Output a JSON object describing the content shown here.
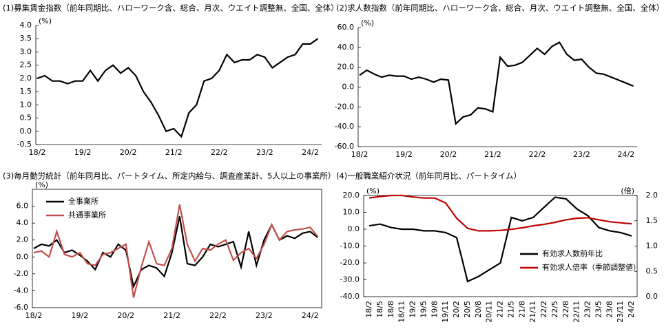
{
  "chart_data": [
    {
      "type": "line",
      "title": "(1)募集賃金指数（前年同期比、ハローワーク含、総合、月次、ウエイト調整無、全国、全体）",
      "y_unit": "(%)",
      "grid": false,
      "frame": "axes",
      "categories": [
        "18/2",
        null,
        null,
        null,
        null,
        null,
        "19/2",
        null,
        null,
        null,
        null,
        null,
        "20/2",
        null,
        null,
        null,
        null,
        null,
        "21/2",
        null,
        null,
        null,
        null,
        null,
        "22/2",
        null,
        null,
        null,
        null,
        null,
        "23/2",
        null,
        null,
        null,
        null,
        null,
        "24/2",
        null
      ],
      "series": [
        {
          "color": "#000000",
          "values": [
            2.0,
            2.1,
            1.9,
            1.9,
            1.8,
            1.9,
            1.9,
            2.3,
            1.9,
            2.3,
            2.5,
            2.2,
            2.4,
            2.1,
            1.5,
            1.1,
            0.6,
            0.0,
            0.1,
            -0.2,
            0.7,
            1.0,
            1.9,
            2.0,
            2.3,
            2.9,
            2.6,
            2.7,
            2.7,
            2.9,
            2.8,
            2.4,
            2.6,
            2.8,
            2.9,
            3.3,
            3.3,
            3.5
          ]
        }
      ],
      "ylim": [
        -0.5,
        4.0
      ],
      "yticks": [
        {
          "value": -0.5,
          "label": "-0.5"
        },
        {
          "value": 0,
          "label": "0.0"
        },
        {
          "value": 0.5,
          "label": "0.5"
        },
        {
          "value": 1,
          "label": "1.0"
        },
        {
          "value": 1.5,
          "label": "1.5"
        },
        {
          "value": 2,
          "label": "2.0"
        },
        {
          "value": 2.5,
          "label": "2.5"
        },
        {
          "value": 3,
          "label": "3.0"
        },
        {
          "value": 3.5,
          "label": "3.5"
        },
        {
          "value": 4,
          "label": "4.0"
        }
      ]
    },
    {
      "type": "line",
      "title": "(2)求人数指数（前年同期比、ハローワーク含、総合、月次、ウエイト調整無、全国、全体）",
      "y_unit": "(%)",
      "grid": false,
      "frame": "axes",
      "categories": [
        "18/2",
        null,
        null,
        null,
        null,
        null,
        "19/2",
        null,
        null,
        null,
        null,
        null,
        "20/2",
        null,
        null,
        null,
        null,
        null,
        "21/2",
        null,
        null,
        null,
        null,
        null,
        "22/2",
        null,
        null,
        null,
        null,
        null,
        "23/2",
        null,
        null,
        null,
        null,
        null,
        "24/2",
        null
      ],
      "series": [
        {
          "color": "#000000",
          "values": [
            12,
            17,
            13,
            10,
            12,
            11,
            11,
            8,
            10,
            8,
            5,
            8,
            7,
            -37,
            -30,
            -28,
            -21,
            -22,
            -25,
            30,
            21,
            22,
            25,
            32,
            39,
            33,
            41,
            45,
            33,
            27,
            28,
            20,
            14,
            13,
            10,
            7,
            4,
            1
          ]
        }
      ],
      "ylim": [
        -60,
        60
      ],
      "yticks": [
        {
          "value": -60,
          "label": "-60.0"
        },
        {
          "value": -40,
          "label": "-40.0"
        },
        {
          "value": -20,
          "label": "-20.0"
        },
        {
          "value": 0,
          "label": "0.0"
        },
        {
          "value": 20,
          "label": "20.0"
        },
        {
          "value": 40,
          "label": "40.0"
        },
        {
          "value": 60,
          "label": "60.0"
        }
      ]
    },
    {
      "type": "line",
      "title": "(3)毎月勤労統計（前年同月比、パートタイム、所定内給与、調査産業計、5人以上の事業所）",
      "y_unit": "(%)",
      "grid": false,
      "frame": "box",
      "legend": "upper left",
      "categories": [
        "18/2",
        null,
        null,
        null,
        null,
        null,
        "19/2",
        null,
        null,
        null,
        null,
        null,
        "20/2",
        null,
        null,
        null,
        null,
        null,
        "21/2",
        null,
        null,
        null,
        null,
        null,
        "22/2",
        null,
        null,
        null,
        null,
        null,
        "23/2",
        null,
        null,
        null,
        null,
        null,
        "24/2",
        null
      ],
      "series": [
        {
          "name": "全事業所",
          "color": "#000000",
          "values": [
            1.0,
            1.5,
            1.3,
            2.0,
            0.5,
            0.8,
            0.2,
            -0.5,
            -1.5,
            0.5,
            0.0,
            1.5,
            0.8,
            -3.5,
            -1.5,
            -1.0,
            -1.3,
            -2.3,
            0.5,
            4.8,
            -0.8,
            -1.0,
            0.0,
            1.5,
            1.2,
            1.5,
            1.8,
            -1.2,
            3.0,
            -1.0,
            2.0,
            3.8,
            2.0,
            2.5,
            2.2,
            2.8,
            3.0,
            2.3
          ]
        },
        {
          "name": "共通事業所",
          "color": "#c0504d",
          "values": [
            0.5,
            0.7,
            0.0,
            3.0,
            0.3,
            0.0,
            0.5,
            -0.8,
            -1.0,
            0.3,
            0.5,
            1.0,
            1.5,
            -4.8,
            -1.2,
            1.8,
            -0.8,
            -1.0,
            1.0,
            6.2,
            1.5,
            -0.5,
            1.0,
            0.8,
            1.5,
            2.0,
            -0.4,
            0.5,
            1.0,
            -0.2,
            1.5,
            3.8,
            2.0,
            3.0,
            3.2,
            3.3,
            3.5,
            2.4
          ]
        }
      ],
      "ylim": [
        -6,
        8
      ],
      "yticks": [
        {
          "value": -6,
          "label": "-6.0"
        },
        {
          "value": -4,
          "label": "-4.0"
        },
        {
          "value": -2,
          "label": "-2.0"
        },
        {
          "value": 0,
          "label": "0.0"
        },
        {
          "value": 2,
          "label": "2.0"
        },
        {
          "value": 4,
          "label": "4.0"
        },
        {
          "value": 6,
          "label": "6.0"
        }
      ]
    },
    {
      "type": "line",
      "title": "(4)一般職業紹介状況（前年同月比、パートタイム）",
      "y_unit": "(%)",
      "y2_unit": "(倍)",
      "grid": false,
      "frame": "box",
      "legend": "lower right",
      "rotate_x_labels": true,
      "categories": [
        "18/2",
        "18/5",
        "18/8",
        "18/11",
        "19/2",
        "19/5",
        "19/8",
        "19/11",
        "20/2",
        "20/5",
        "20/8",
        "20/11",
        "21/2",
        "21/5",
        "21/8",
        "21/11",
        "22/2",
        "22/5",
        "22/8",
        "22/11",
        "23/2",
        "23/5",
        "23/8",
        "23/11",
        "24/2"
      ],
      "series": [
        {
          "name": "有効求人数前年比",
          "color": "#000000",
          "values": [
            2,
            3,
            1,
            0,
            0,
            -1,
            -1,
            -2,
            -5,
            -31,
            -28,
            -24,
            -20,
            7,
            5,
            7,
            13,
            19,
            18,
            12,
            8,
            1,
            -1,
            -2,
            -4
          ]
        },
        {
          "name": "有効求人倍率（季節調整値）",
          "color": "#c00000",
          "axis": "y2",
          "values": [
            1.95,
            1.98,
            2.0,
            2.0,
            1.97,
            1.95,
            1.95,
            1.85,
            1.55,
            1.35,
            1.3,
            1.3,
            1.31,
            1.33,
            1.36,
            1.4,
            1.43,
            1.47,
            1.52,
            1.55,
            1.56,
            1.52,
            1.48,
            1.46,
            1.44
          ]
        }
      ],
      "ylim": [
        -40,
        20
      ],
      "yticks": [
        {
          "value": -40,
          "label": "-40.0"
        },
        {
          "value": -30,
          "label": "-30.0"
        },
        {
          "value": -20,
          "label": "-20.0"
        },
        {
          "value": -10,
          "label": "-10.0"
        },
        {
          "value": 0,
          "label": "0.0"
        },
        {
          "value": 10,
          "label": "10.0"
        },
        {
          "value": 20,
          "label": "20.0"
        }
      ],
      "y2lim": [
        0,
        2.0
      ],
      "y2ticks": [
        {
          "value": 0,
          "label": "0.0"
        },
        {
          "value": 0.5,
          "label": "0.5"
        },
        {
          "value": 1,
          "label": "1.0"
        },
        {
          "value": 1.5,
          "label": "1.5"
        },
        {
          "value": 2,
          "label": "2.0"
        }
      ]
    }
  ]
}
